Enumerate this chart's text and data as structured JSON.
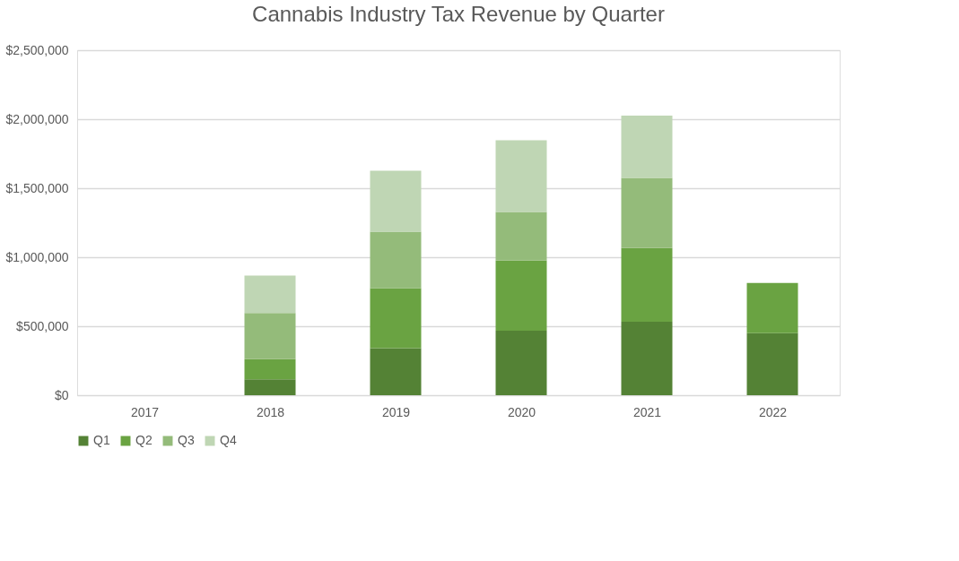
{
  "chart_data": {
    "type": "bar",
    "stacked": true,
    "title": "Cannabis Industry Tax Revenue by Quarter",
    "categories": [
      "2017",
      "2018",
      "2019",
      "2020",
      "2021",
      "2022"
    ],
    "series": [
      {
        "name": "Q1",
        "color": "#548235",
        "values": [
          null,
          115000,
          341000,
          467000,
          533000,
          450000
        ]
      },
      {
        "name": "Q2",
        "color": "#6aa342",
        "values": [
          null,
          146000,
          435000,
          509000,
          534000,
          363000
        ]
      },
      {
        "name": "Q3",
        "color": "#94bb7a",
        "values": [
          null,
          335000,
          409000,
          352000,
          507000,
          null
        ]
      },
      {
        "name": "Q4",
        "color": "#bfd6b4",
        "values": [
          null,
          271000,
          441000,
          520000,
          452000,
          null
        ]
      }
    ],
    "ylim": [
      0,
      2500000
    ],
    "yticks": [
      {
        "value": 0,
        "label": "$0"
      },
      {
        "value": 500000,
        "label": "$500,000"
      },
      {
        "value": 1000000,
        "label": "$1,000,000"
      },
      {
        "value": 1500000,
        "label": "$1,500,000"
      },
      {
        "value": 2000000,
        "label": "$2,000,000"
      },
      {
        "value": 2500000,
        "label": "$2,500,000"
      }
    ],
    "grid": "y",
    "legend": "bottom"
  }
}
